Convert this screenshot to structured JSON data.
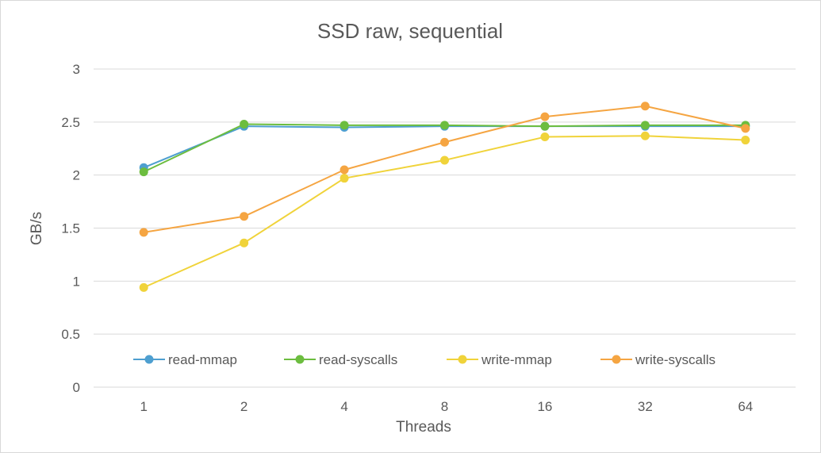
{
  "chart_data": {
    "type": "line",
    "title": "SSD raw, sequential",
    "xlabel": "Threads",
    "ylabel": "GB/s",
    "categories": [
      "1",
      "2",
      "4",
      "8",
      "16",
      "32",
      "64"
    ],
    "ylim": [
      0,
      3
    ],
    "yticks": [
      "0",
      "0.5",
      "1",
      "1.5",
      "2",
      "2.5",
      "3"
    ],
    "grid": true,
    "legend": "bottom-inside",
    "series": [
      {
        "name": "read-mmap",
        "color": "#4e9fd0",
        "values": [
          2.07,
          2.46,
          2.45,
          2.46,
          2.46,
          2.46,
          2.46
        ]
      },
      {
        "name": "read-syscalls",
        "color": "#6cbd3f",
        "values": [
          2.03,
          2.48,
          2.47,
          2.47,
          2.46,
          2.47,
          2.47
        ]
      },
      {
        "name": "write-mmap",
        "color": "#f0d33a",
        "values": [
          0.94,
          1.36,
          1.97,
          2.14,
          2.36,
          2.37,
          2.33
        ]
      },
      {
        "name": "write-syscalls",
        "color": "#f5a542",
        "values": [
          1.46,
          1.61,
          2.05,
          2.31,
          2.55,
          2.65,
          2.44
        ]
      }
    ]
  }
}
